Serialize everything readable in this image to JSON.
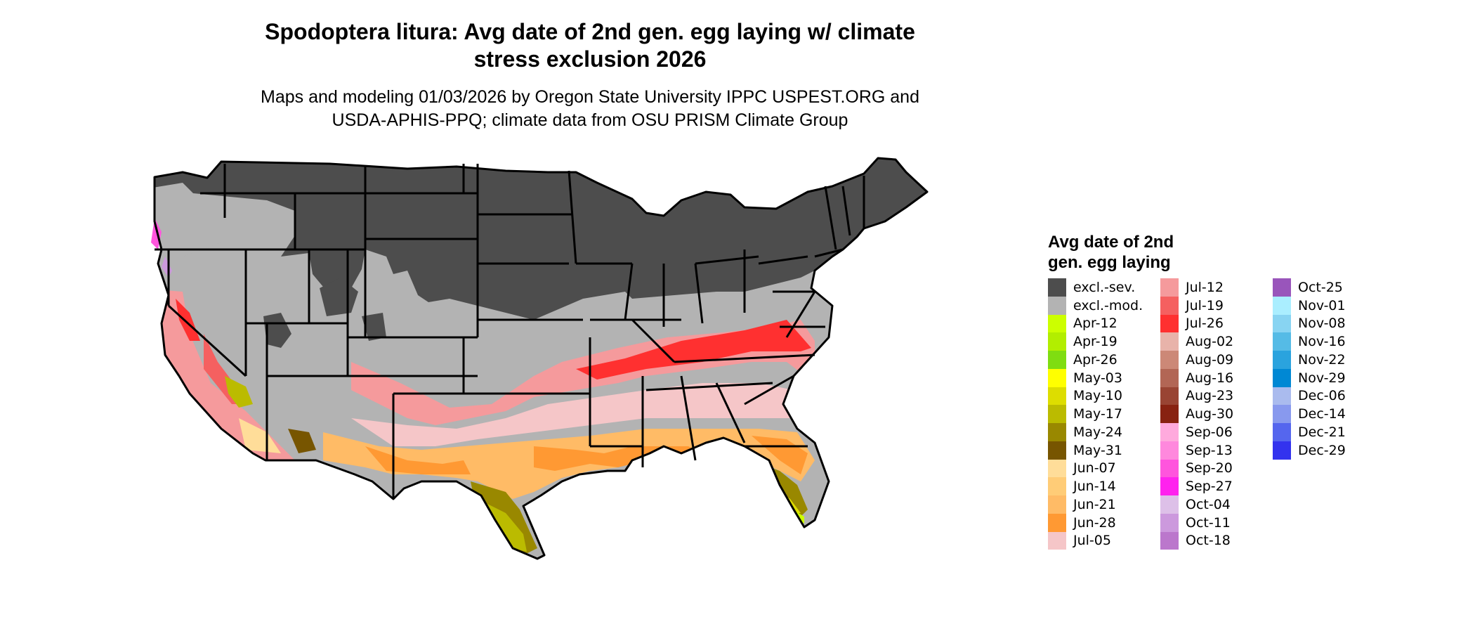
{
  "title_line1": "Spodoptera litura: Avg date of 2nd gen. egg laying w/ climate",
  "title_line2": "stress exclusion 2026",
  "subtitle_line1": "Maps and modeling 01/03/2026 by Oregon State University IPPC USPEST.ORG and",
  "subtitle_line2": "USDA-APHIS-PPQ; climate data from OSU PRISM Climate Group",
  "legend": {
    "title_line1": "Avg date of 2nd",
    "title_line2": "gen. egg laying",
    "columns": [
      [
        {
          "label": "excl.-sev.",
          "color": "#4d4d4d"
        },
        {
          "label": "excl.-mod.",
          "color": "#b3b3b3"
        },
        {
          "label": "Apr-12",
          "color": "#ccff00"
        },
        {
          "label": "Apr-19",
          "color": "#b2ee00"
        },
        {
          "label": "Apr-26",
          "color": "#7fdd11"
        },
        {
          "label": "May-03",
          "color": "#ffff00"
        },
        {
          "label": "May-10",
          "color": "#dddd00"
        },
        {
          "label": "May-17",
          "color": "#bbbb00"
        },
        {
          "label": "May-24",
          "color": "#998800"
        },
        {
          "label": "May-31",
          "color": "#775500"
        },
        {
          "label": "Jun-07",
          "color": "#ffdd99"
        },
        {
          "label": "Jun-14",
          "color": "#ffcc77"
        },
        {
          "label": "Jun-21",
          "color": "#ffbb66"
        },
        {
          "label": "Jun-28",
          "color": "#ff9933"
        },
        {
          "label": "Jul-05",
          "color": "#f5c6c8"
        }
      ],
      [
        {
          "label": "Jul-12",
          "color": "#f59a9c"
        },
        {
          "label": "Jul-19",
          "color": "#f56060"
        },
        {
          "label": "Jul-26",
          "color": "#ff3030"
        },
        {
          "label": "Aug-02",
          "color": "#e8b3aa"
        },
        {
          "label": "Aug-09",
          "color": "#cc8877"
        },
        {
          "label": "Aug-16",
          "color": "#b26655"
        },
        {
          "label": "Aug-23",
          "color": "#994433"
        },
        {
          "label": "Aug-30",
          "color": "#882211"
        },
        {
          "label": "Sep-06",
          "color": "#ffaadd"
        },
        {
          "label": "Sep-13",
          "color": "#ff88dd"
        },
        {
          "label": "Sep-20",
          "color": "#ff55dd"
        },
        {
          "label": "Sep-27",
          "color": "#ff22ee"
        },
        {
          "label": "Oct-04",
          "color": "#ddc0e8"
        },
        {
          "label": "Oct-11",
          "color": "#cc99dd"
        },
        {
          "label": "Oct-18",
          "color": "#bb77cc"
        }
      ],
      [
        {
          "label": "Oct-25",
          "color": "#9955bb"
        },
        {
          "label": "Nov-01",
          "color": "#aaeeff"
        },
        {
          "label": "Nov-08",
          "color": "#88d4f2"
        },
        {
          "label": "Nov-16",
          "color": "#55bbe6"
        },
        {
          "label": "Nov-22",
          "color": "#2aa3de"
        },
        {
          "label": "Nov-29",
          "color": "#0088d4"
        },
        {
          "label": "Dec-06",
          "color": "#aabbee"
        },
        {
          "label": "Dec-14",
          "color": "#8899ee"
        },
        {
          "label": "Dec-21",
          "color": "#5566ee"
        },
        {
          "label": "Dec-29",
          "color": "#3333ee"
        }
      ]
    ]
  }
}
